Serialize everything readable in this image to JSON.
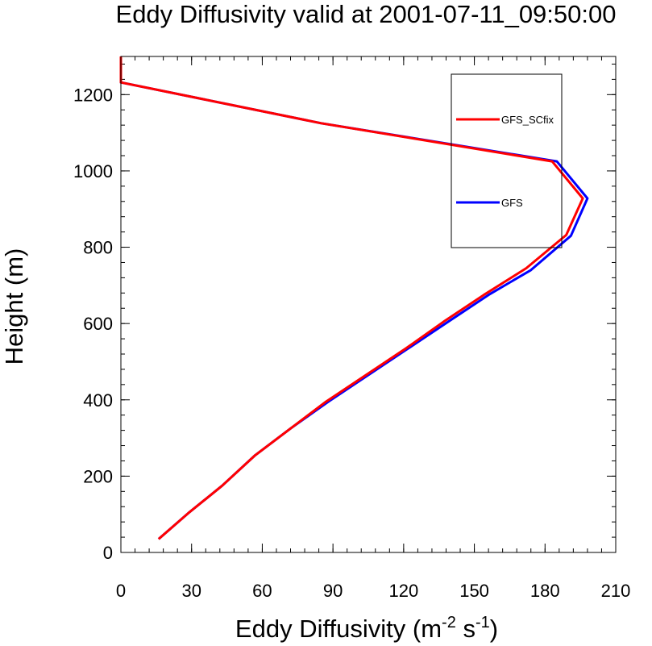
{
  "chart_data": {
    "type": "line",
    "title": "Eddy Diffusivity valid at 2001-07-11_09:50:00",
    "xlabel": "Eddy Diffusivity (m",
    "xlabel_sup1": "-2",
    "xlabel_mid": " s",
    "xlabel_sup2": "-1",
    "xlabel_end": ")",
    "ylabel": "Height (m)",
    "xlim": [
      0,
      210
    ],
    "ylim": [
      0,
      1300
    ],
    "x_ticks": [
      0,
      30,
      60,
      90,
      120,
      150,
      180,
      210
    ],
    "y_ticks": [
      0,
      200,
      400,
      600,
      800,
      1000,
      1200
    ],
    "x_minor_step": 6,
    "y_minor_step": 40,
    "legend": {
      "placement": "top-right"
    },
    "series": [
      {
        "name": "GFS",
        "color": "#0000ff",
        "points": [
          [
            16,
            35
          ],
          [
            29,
            105
          ],
          [
            43,
            175
          ],
          [
            57,
            255
          ],
          [
            72,
            325
          ],
          [
            88,
            395
          ],
          [
            105,
            465
          ],
          [
            122,
            535
          ],
          [
            139,
            605
          ],
          [
            156,
            675
          ],
          [
            174,
            740
          ],
          [
            191,
            830
          ],
          [
            198,
            928
          ],
          [
            185,
            1025
          ],
          [
            85,
            1125
          ],
          [
            0,
            1232
          ],
          [
            0,
            1300
          ]
        ]
      },
      {
        "name": "GFS_SCfix",
        "color": "#ff0000",
        "points": [
          [
            16,
            35
          ],
          [
            29,
            105
          ],
          [
            43,
            175
          ],
          [
            57,
            255
          ],
          [
            72,
            325
          ],
          [
            87,
            395
          ],
          [
            104,
            465
          ],
          [
            121,
            535
          ],
          [
            137,
            605
          ],
          [
            154,
            675
          ],
          [
            172,
            745
          ],
          [
            189,
            832
          ],
          [
            196,
            928
          ],
          [
            183,
            1025
          ],
          [
            85,
            1125
          ],
          [
            0,
            1232
          ],
          [
            0,
            1300
          ]
        ]
      }
    ]
  }
}
